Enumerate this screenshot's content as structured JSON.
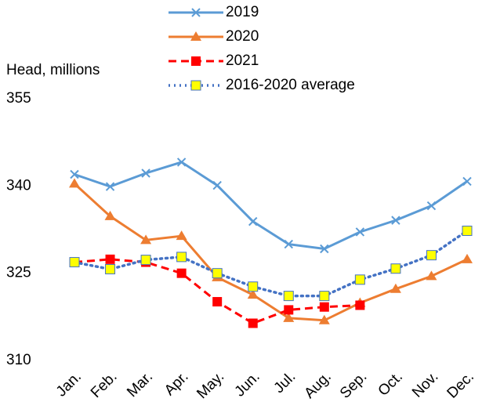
{
  "chart_data": {
    "type": "line",
    "y_label": "Head, millions",
    "categories": [
      "Jan.",
      "Feb.",
      "Mar.",
      "Apr.",
      "May.",
      "Jun.",
      "Jul.",
      "Aug.",
      "Sep.",
      "Oct.",
      "Nov.",
      "Dec."
    ],
    "ylim": [
      310,
      355
    ],
    "yticks": [
      310,
      325,
      340,
      355
    ],
    "grid": false,
    "legend": "top",
    "series": [
      {
        "name": "2019",
        "color": "#5b9bd5",
        "marker": "x",
        "line": "solid",
        "values": [
          342.0,
          339.9,
          342.2,
          344.1,
          340.1,
          333.9,
          330.0,
          329.2,
          332.1,
          334.1,
          336.6,
          340.8
        ]
      },
      {
        "name": "2020",
        "color": "#ed7d31",
        "marker": "triangle",
        "line": "solid",
        "values": [
          340.4,
          334.8,
          330.7,
          331.4,
          324.3,
          321.3,
          317.3,
          316.9,
          319.9,
          322.3,
          324.5,
          327.4
        ]
      },
      {
        "name": "2021",
        "color": "#ff0000",
        "marker": "square",
        "line": "dashed",
        "values": [
          326.9,
          327.4,
          326.9,
          325.0,
          320.1,
          316.4,
          318.7,
          319.2,
          319.5,
          null,
          null,
          null
        ]
      },
      {
        "name": "2016-2020 average",
        "color": "#4472c4",
        "marker_fill": "#ffff00",
        "marker": "square",
        "line": "dotted",
        "values": [
          326.9,
          325.7,
          327.3,
          327.8,
          325.0,
          322.7,
          321.1,
          321.1,
          323.9,
          325.8,
          328.1,
          332.3
        ]
      }
    ]
  }
}
